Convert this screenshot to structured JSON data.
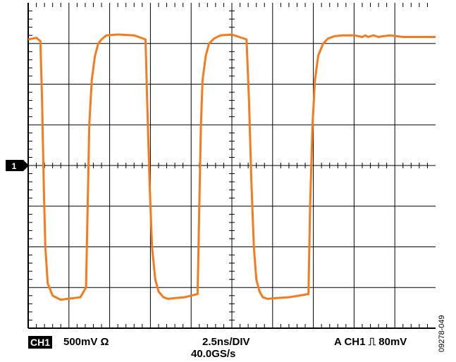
{
  "chart_data": {
    "type": "line",
    "title": "",
    "xlabel": "",
    "ylabel": "",
    "grid": true,
    "x_divisions": 10,
    "y_divisions": 8,
    "xlim": [
      0,
      25
    ],
    "ylim": [
      -2,
      2
    ],
    "ground_marker_level": 0,
    "trace_color": "#f47b20",
    "series": [
      {
        "name": "",
        "x": [
          0,
          0.5,
          0.75,
          0.85,
          0.95,
          1.05,
          1.2,
          1.5,
          2.0,
          2.4,
          2.8,
          3.2,
          3.55,
          3.65,
          3.75,
          3.9,
          4.1,
          4.3,
          4.5,
          4.8,
          5.5,
          6.5,
          7.2,
          7.3,
          7.45,
          7.6,
          7.8,
          8.0,
          8.3,
          8.6,
          9.0,
          9.6,
          10.4,
          10.5,
          10.6,
          10.7,
          10.9,
          11.1,
          11.4,
          11.8,
          12.5,
          13.4,
          13.55,
          13.7,
          13.85,
          14.0,
          14.2,
          14.4,
          14.7,
          15.2,
          16.0,
          17.2,
          17.3,
          17.45,
          17.6,
          17.8,
          18.1,
          18.4,
          18.8,
          19.3,
          20.0,
          20.5,
          20.6,
          20.7,
          20.85,
          21.0,
          21.2,
          21.5,
          21.8,
          22.2,
          23.0,
          25.0
        ],
        "values": [
          1.55,
          1.57,
          1.53,
          0.8,
          -0.2,
          -1.0,
          -1.45,
          -1.6,
          -1.65,
          -1.64,
          -1.63,
          -1.62,
          -1.5,
          -0.5,
          0.5,
          1.05,
          1.35,
          1.5,
          1.55,
          1.6,
          1.61,
          1.6,
          1.55,
          0.8,
          -0.2,
          -1.0,
          -1.4,
          -1.55,
          -1.62,
          -1.64,
          -1.63,
          -1.62,
          -1.58,
          -0.5,
          0.5,
          1.05,
          1.35,
          1.5,
          1.56,
          1.6,
          1.61,
          1.55,
          0.8,
          -0.2,
          -1.0,
          -1.4,
          -1.55,
          -1.62,
          -1.64,
          -1.63,
          -1.62,
          -1.58,
          -0.5,
          0.5,
          1.05,
          1.35,
          1.5,
          1.56,
          1.59,
          1.6,
          1.6,
          1.58,
          1.59,
          1.6,
          1.58,
          1.59,
          1.6,
          1.58,
          1.59,
          1.6,
          1.58,
          1.58
        ]
      }
    ]
  },
  "readout": {
    "channel_badge": "CH1",
    "vertical_scale": "500mV Ω",
    "timebase": "2.5ns/DIV",
    "sample_rate": "40.0GS/s",
    "trigger": "A  CH1 ⎍  80mV",
    "ground_marker": "1"
  },
  "figure_id": "09278-049"
}
